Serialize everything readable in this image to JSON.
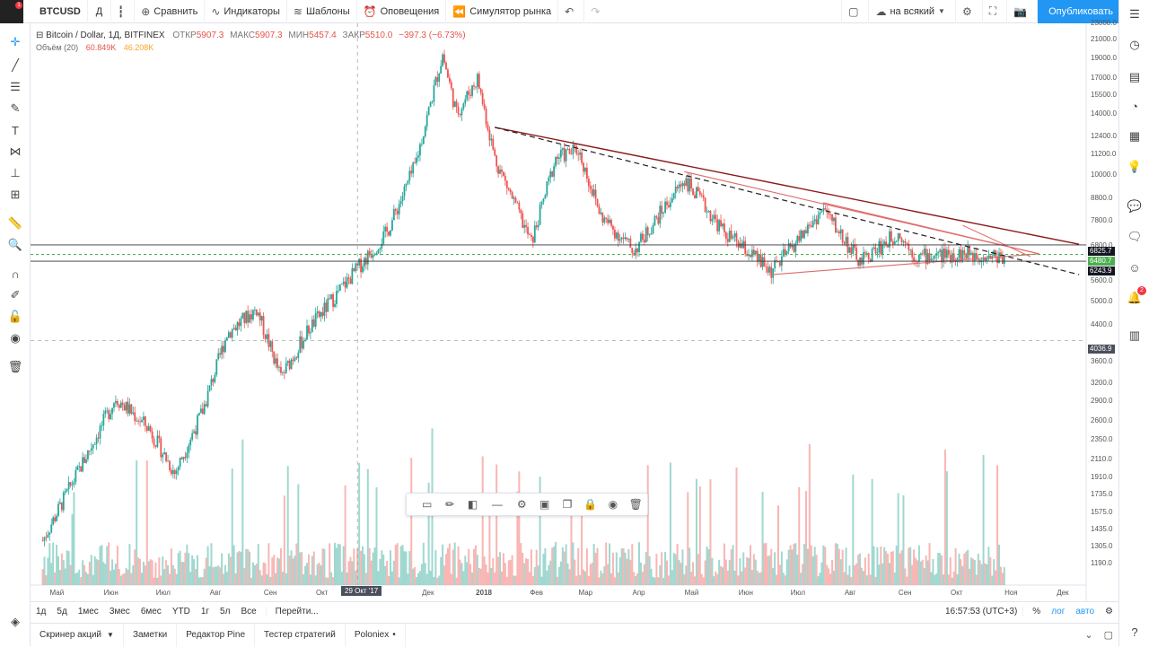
{
  "toolbar": {
    "symbol": "BTCUSD",
    "notifications_badge": "1",
    "interval": "Д",
    "compare": "Сравнить",
    "indicators": "Индикаторы",
    "templates": "Шаблоны",
    "alerts": "Оповещения",
    "replay": "Симулятор рынка",
    "layout_name": "на всякий",
    "publish": "Опубликовать"
  },
  "legend": {
    "title": "Bitcoin / Dollar, 1Д, BITFINEX",
    "open_label": "ОТКР",
    "open": "5907.3",
    "high_label": "МАКС",
    "high": "5907.3",
    "low_label": "МИН",
    "low": "5457.4",
    "close_label": "ЗАКР",
    "close": "5510.0",
    "change": "−397.3 (−6.73%)",
    "volume_label": "Объём (20)",
    "volume_value1": "60.849K",
    "volume_value2": "46.208K"
  },
  "chart_data": {
    "type": "candlestick",
    "symbol": "Bitcoin / Dollar",
    "interval": "1Д",
    "exchange": "BITFINEX",
    "y_scale": "log",
    "y_ticks": [
      "23000.0",
      "21000.0",
      "19000.0",
      "17000.0",
      "15500.0",
      "14000.0",
      "12400.0",
      "11200.0",
      "10000.0",
      "8800.0",
      "7800.0",
      "6800.0",
      "5600.0",
      "5000.0",
      "4400.0",
      "3600.0",
      "3200.0",
      "2900.0",
      "2600.0",
      "2350.0",
      "2110.0",
      "1910.0",
      "1735.0",
      "1575.0",
      "1435.0",
      "1305.0",
      "1190.0"
    ],
    "x_ticks": [
      "Май",
      "Июн",
      "Июл",
      "Авг",
      "Сен",
      "Окт",
      "Дек",
      "2018",
      "Фев",
      "Мар",
      "Апр",
      "Май",
      "Июн",
      "Июл",
      "Авг",
      "Сен",
      "Окт",
      "Ноя",
      "Дек"
    ],
    "crosshair_date": "29 Окт '17",
    "crosshair_price": "4036.9",
    "price_tags": [
      {
        "value": "6825.7",
        "color": "#131722"
      },
      {
        "value": "6480.7",
        "color": "#4caf50"
      },
      {
        "value": "6243.9",
        "color": "#131722"
      }
    ],
    "series": [
      {
        "date": "2017-05-01",
        "close": 1350
      },
      {
        "date": "2017-06-01",
        "close": 2400
      },
      {
        "date": "2017-06-12",
        "close": 2950
      },
      {
        "date": "2017-07-01",
        "close": 2500
      },
      {
        "date": "2017-07-16",
        "close": 1950
      },
      {
        "date": "2017-08-01",
        "close": 2750
      },
      {
        "date": "2017-08-15",
        "close": 4200
      },
      {
        "date": "2017-09-01",
        "close": 4800
      },
      {
        "date": "2017-09-15",
        "close": 3300
      },
      {
        "date": "2017-10-01",
        "close": 4300
      },
      {
        "date": "2017-10-29",
        "close": 6000
      },
      {
        "date": "2017-11-15",
        "close": 7300
      },
      {
        "date": "2017-12-01",
        "close": 10500
      },
      {
        "date": "2017-12-17",
        "close": 19400
      },
      {
        "date": "2017-12-25",
        "close": 14000
      },
      {
        "date": "2018-01-06",
        "close": 17000
      },
      {
        "date": "2018-01-16",
        "close": 11000
      },
      {
        "date": "2018-02-06",
        "close": 6900
      },
      {
        "date": "2018-02-20",
        "close": 11000
      },
      {
        "date": "2018-03-05",
        "close": 11500
      },
      {
        "date": "2018-03-18",
        "close": 8000
      },
      {
        "date": "2018-04-06",
        "close": 6600
      },
      {
        "date": "2018-05-05",
        "close": 9800
      },
      {
        "date": "2018-05-28",
        "close": 7300
      },
      {
        "date": "2018-06-24",
        "close": 5900
      },
      {
        "date": "2018-07-24",
        "close": 8300
      },
      {
        "date": "2018-08-14",
        "close": 6200
      },
      {
        "date": "2018-09-05",
        "close": 7300
      },
      {
        "date": "2018-09-15",
        "close": 6400
      },
      {
        "date": "2018-10-15",
        "close": 6500
      },
      {
        "date": "2018-11-06",
        "close": 6400
      }
    ]
  },
  "drawing_toolbar": [
    "rectangle-tool",
    "pencil-tool",
    "fill-tool",
    "line-style-tool",
    "settings-tool",
    "visual-order-tool",
    "clone-tool",
    "lock-tool",
    "visibility-tool",
    "delete-tool"
  ],
  "bottom": {
    "ranges": [
      "1д",
      "5д",
      "1мес",
      "3мес",
      "6мес",
      "YTD",
      "1г",
      "5л",
      "Все"
    ],
    "goto": "Перейти...",
    "time": "16:57:53 (UTC+3)",
    "percent": "%",
    "log": "лог",
    "auto": "авто"
  },
  "footer": {
    "tabs": [
      "Скринер акций",
      "Заметки",
      "Редактор Pine",
      "Тестер стратегий",
      "Poloniex"
    ]
  }
}
